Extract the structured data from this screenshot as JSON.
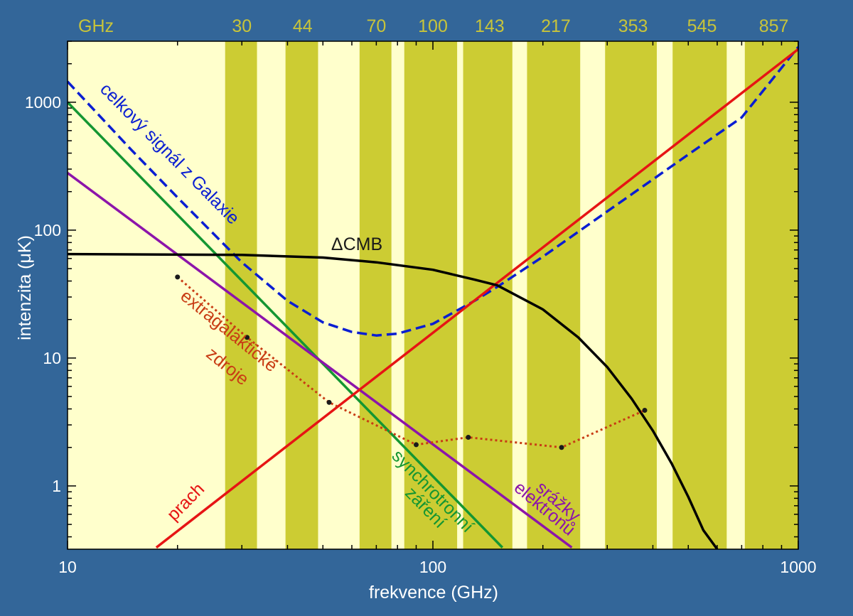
{
  "chart_data": {
    "type": "line",
    "x_scale": "log",
    "y_scale": "log",
    "xlim": [
      10,
      1000
    ],
    "ylim": [
      0.32,
      3000
    ],
    "xlabel": "frekvence (GHz)",
    "ylabel": "intenzita (μK)",
    "x_ticks": [
      {
        "value": 10,
        "label": "10"
      },
      {
        "value": 100,
        "label": "100"
      },
      {
        "value": 1000,
        "label": "1000"
      }
    ],
    "y_ticks": [
      {
        "value": 1,
        "label": "1"
      },
      {
        "value": 10,
        "label": "10"
      },
      {
        "value": 100,
        "label": "100"
      },
      {
        "value": 1000,
        "label": "1000"
      }
    ],
    "band_unit_label": "GHz",
    "bands": [
      {
        "label": "30",
        "center": 30,
        "lo": 27,
        "hi": 33
      },
      {
        "label": "44",
        "center": 44,
        "lo": 39.5,
        "hi": 48.5
      },
      {
        "label": "70",
        "center": 70,
        "lo": 63,
        "hi": 77
      },
      {
        "label": "100",
        "center": 100,
        "lo": 83.5,
        "hi": 116.5
      },
      {
        "label": "143",
        "center": 143,
        "lo": 121,
        "hi": 165
      },
      {
        "label": "217",
        "center": 217,
        "lo": 181,
        "hi": 253
      },
      {
        "label": "353",
        "center": 353,
        "lo": 296,
        "hi": 410
      },
      {
        "label": "545",
        "center": 545,
        "lo": 453,
        "hi": 637
      },
      {
        "label": "857",
        "center": 857,
        "lo": 714,
        "hi": 1000
      }
    ],
    "series": [
      {
        "name": "celkový signál z Galaxie",
        "color": "#0a1ed2",
        "style": "dashed",
        "x": [
          10,
          15,
          20,
          30,
          40,
          50,
          60,
          70,
          80,
          100,
          130,
          150,
          200,
          300,
          500,
          700,
          1000
        ],
        "y": [
          1450,
          420,
          180,
          56,
          28,
          19,
          16,
          15,
          15.5,
          18.5,
          28,
          36,
          62,
          140,
          390,
          760,
          2700
        ]
      },
      {
        "name": "synchrotronní záření",
        "color": "#149632",
        "style": "solid",
        "x": [
          10,
          155
        ],
        "y": [
          1000,
          0.33
        ]
      },
      {
        "name": "srážky elektronů",
        "color": "#8c14aa",
        "style": "solid",
        "x": [
          10,
          240
        ],
        "y": [
          280,
          0.33
        ]
      },
      {
        "name": "prach",
        "color": "#e61414",
        "style": "solid",
        "x": [
          17.5,
          1000
        ],
        "y": [
          0.33,
          2600
        ]
      },
      {
        "name": "ΔCMB",
        "color": "#000000",
        "style": "solid",
        "x": [
          10,
          30,
          50,
          70,
          100,
          130,
          150,
          200,
          250,
          300,
          350,
          400,
          450,
          500,
          550,
          600
        ],
        "y": [
          65,
          64,
          61,
          56,
          49,
          41,
          37,
          24,
          14.5,
          8.5,
          4.8,
          2.7,
          1.5,
          0.82,
          0.45,
          0.32
        ]
      },
      {
        "name": "extragalaktické zdroje",
        "color": "#c83c14",
        "style": "dotted",
        "markers": true,
        "x": [
          20,
          31,
          52,
          90,
          125,
          225,
          380
        ],
        "y": [
          43,
          14.5,
          4.5,
          2.1,
          2.4,
          2.0,
          3.9
        ]
      }
    ],
    "annotations": [
      {
        "text": "celkový signál z Galaxie",
        "color": "#0a1ed2"
      },
      {
        "text": "ΔCMB",
        "color": "#1a1a1a"
      },
      {
        "text": "extragalaktické",
        "color": "#c83c14"
      },
      {
        "text": "zdroje",
        "color": "#c83c14"
      },
      {
        "text": "synchrotronní",
        "color": "#149632"
      },
      {
        "text": "záření",
        "color": "#149632"
      },
      {
        "text": "srážky",
        "color": "#8c14aa"
      },
      {
        "text": "elektronů",
        "color": "#8c14aa"
      },
      {
        "text": "prach",
        "color": "#e61414"
      }
    ],
    "colors": {
      "background": "#336699",
      "plot_background": "#ffffcc",
      "band_fill": "#cccc33",
      "band_label": "#c8c43a",
      "text": "#ffffff"
    },
    "grid": false,
    "legend": "none"
  }
}
